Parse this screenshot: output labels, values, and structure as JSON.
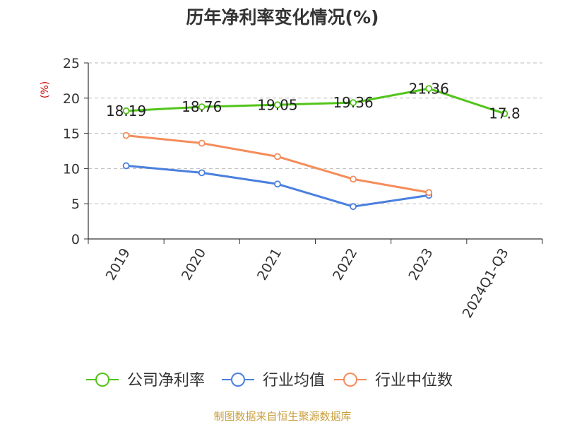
{
  "chart_data": {
    "type": "line",
    "title": "历年净利率变化情况(%)",
    "ylabel": "(%)",
    "xlabel": "",
    "categories": [
      "2019",
      "2020",
      "2021",
      "2022",
      "2023",
      "2024Q1-Q3"
    ],
    "ylim": [
      0,
      25
    ],
    "yticks": [
      0,
      5,
      10,
      15,
      20,
      25
    ],
    "grid": true,
    "legend_position": "bottom",
    "series": [
      {
        "name": "公司净利率",
        "color": "#52c41a",
        "values": [
          18.19,
          18.76,
          19.05,
          19.36,
          21.36,
          17.8
        ],
        "labels": [
          "18.19",
          "18.76",
          "19.05",
          "19.36",
          "21.36",
          "17.8"
        ]
      },
      {
        "name": "行业均值",
        "color": "#4a7fde",
        "values": [
          10.4,
          9.4,
          7.8,
          4.6,
          6.2,
          null
        ],
        "labels": []
      },
      {
        "name": "行业中位数",
        "color": "#f58c5a",
        "values": [
          14.7,
          13.6,
          11.7,
          8.5,
          6.6,
          null
        ],
        "labels": []
      }
    ]
  },
  "source": "制图数据来自恒生聚源数据库",
  "colors": {
    "title": "#333333",
    "axis": "#333333",
    "ylabel": "#cc0000",
    "grid": "#bbbbbb",
    "source": "#c8a040"
  }
}
